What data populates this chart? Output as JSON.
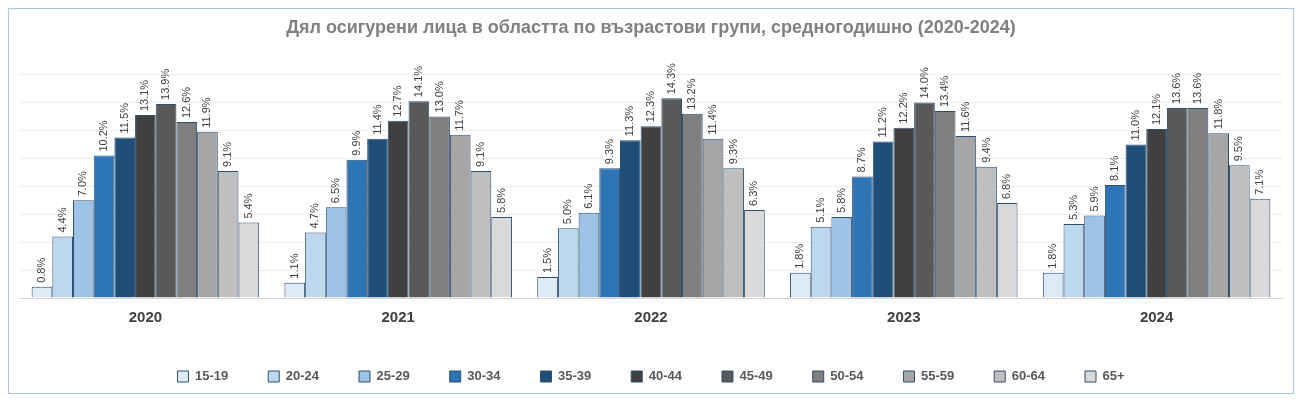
{
  "chart_data": {
    "type": "bar",
    "title": "Дял осигурени лица в областта по възрастови групи, средногодишно (2020-2024)",
    "categories": [
      "2020",
      "2021",
      "2022",
      "2023",
      "2024"
    ],
    "ylim": [
      0,
      16
    ],
    "yticks": [
      {
        "value": 0,
        "label": null
      },
      {
        "value": 2,
        "label": null
      },
      {
        "value": 4,
        "label": null
      },
      {
        "value": 6,
        "label": null
      },
      {
        "value": 8,
        "label": null
      },
      {
        "value": 10,
        "label": null
      },
      {
        "value": 12,
        "label": null
      },
      {
        "value": 14,
        "label": null
      },
      {
        "value": 16,
        "label": null
      }
    ],
    "tick_labels": "x",
    "grid": "y",
    "legend": "bottom",
    "series": [
      {
        "name": "15-19",
        "color": "#deebf7",
        "values": [
          0.8,
          1.1,
          1.5,
          1.8,
          1.8
        ],
        "value_labels": [
          "0.8%",
          "1.1%",
          "1.5%",
          "1.8%",
          "1.8%"
        ]
      },
      {
        "name": "20-24",
        "color": "#bdd7ee",
        "values": [
          4.4,
          4.7,
          5.0,
          5.1,
          5.3
        ],
        "value_labels": [
          "4.4%",
          "4.7%",
          "5.0%",
          "5.1%",
          "5.3%"
        ]
      },
      {
        "name": "25-29",
        "color": "#9dc3e6",
        "values": [
          7.0,
          6.5,
          6.1,
          5.8,
          5.9
        ],
        "value_labels": [
          "7.0%",
          "6.5%",
          "6.1%",
          "5.8%",
          "5.9%"
        ]
      },
      {
        "name": "30-34",
        "color": "#2e75b6",
        "values": [
          10.2,
          9.9,
          9.3,
          8.7,
          8.1
        ],
        "value_labels": [
          "10.2%",
          "9.9%",
          "9.3%",
          "8.7%",
          "8.1%"
        ]
      },
      {
        "name": "35-39",
        "color": "#1f4e79",
        "values": [
          11.5,
          11.4,
          11.3,
          11.2,
          11.0
        ],
        "value_labels": [
          "11.5%",
          "11.4%",
          "11.3%",
          "11.2%",
          "11.0%"
        ]
      },
      {
        "name": "40-44",
        "color": "#404040",
        "values": [
          13.1,
          12.7,
          12.3,
          12.2,
          12.1
        ],
        "value_labels": [
          "13.1%",
          "12.7%",
          "12.3%",
          "12.2%",
          "12.1%"
        ]
      },
      {
        "name": "45-49",
        "color": "#595959",
        "values": [
          13.9,
          14.1,
          14.3,
          14.0,
          13.6
        ],
        "value_labels": [
          "13.9%",
          "14.1%",
          "14.3%",
          "14.0%",
          "13.6%"
        ]
      },
      {
        "name": "50-54",
        "color": "#7f7f7f",
        "values": [
          12.6,
          13.0,
          13.2,
          13.4,
          13.6
        ],
        "value_labels": [
          "12.6%",
          "13.0%",
          "13.2%",
          "13.4%",
          "13.6%"
        ]
      },
      {
        "name": "55-59",
        "color": "#a6a6a6",
        "values": [
          11.9,
          11.7,
          11.4,
          11.6,
          11.8
        ],
        "value_labels": [
          "11.9%",
          "11.7%",
          "11.4%",
          "11.6%",
          "11.8%"
        ]
      },
      {
        "name": "60-64",
        "color": "#bfbfbf",
        "values": [
          9.1,
          9.1,
          9.3,
          9.4,
          9.5
        ],
        "value_labels": [
          "9.1%",
          "9.1%",
          "9.3%",
          "9.4%",
          "9.5%"
        ]
      },
      {
        "name": "65+",
        "color": "#d9d9d9",
        "values": [
          5.4,
          5.8,
          6.3,
          6.8,
          7.1
        ],
        "value_labels": [
          "5.4%",
          "5.8%",
          "6.3%",
          "6.8%",
          "7.1%"
        ]
      }
    ]
  }
}
